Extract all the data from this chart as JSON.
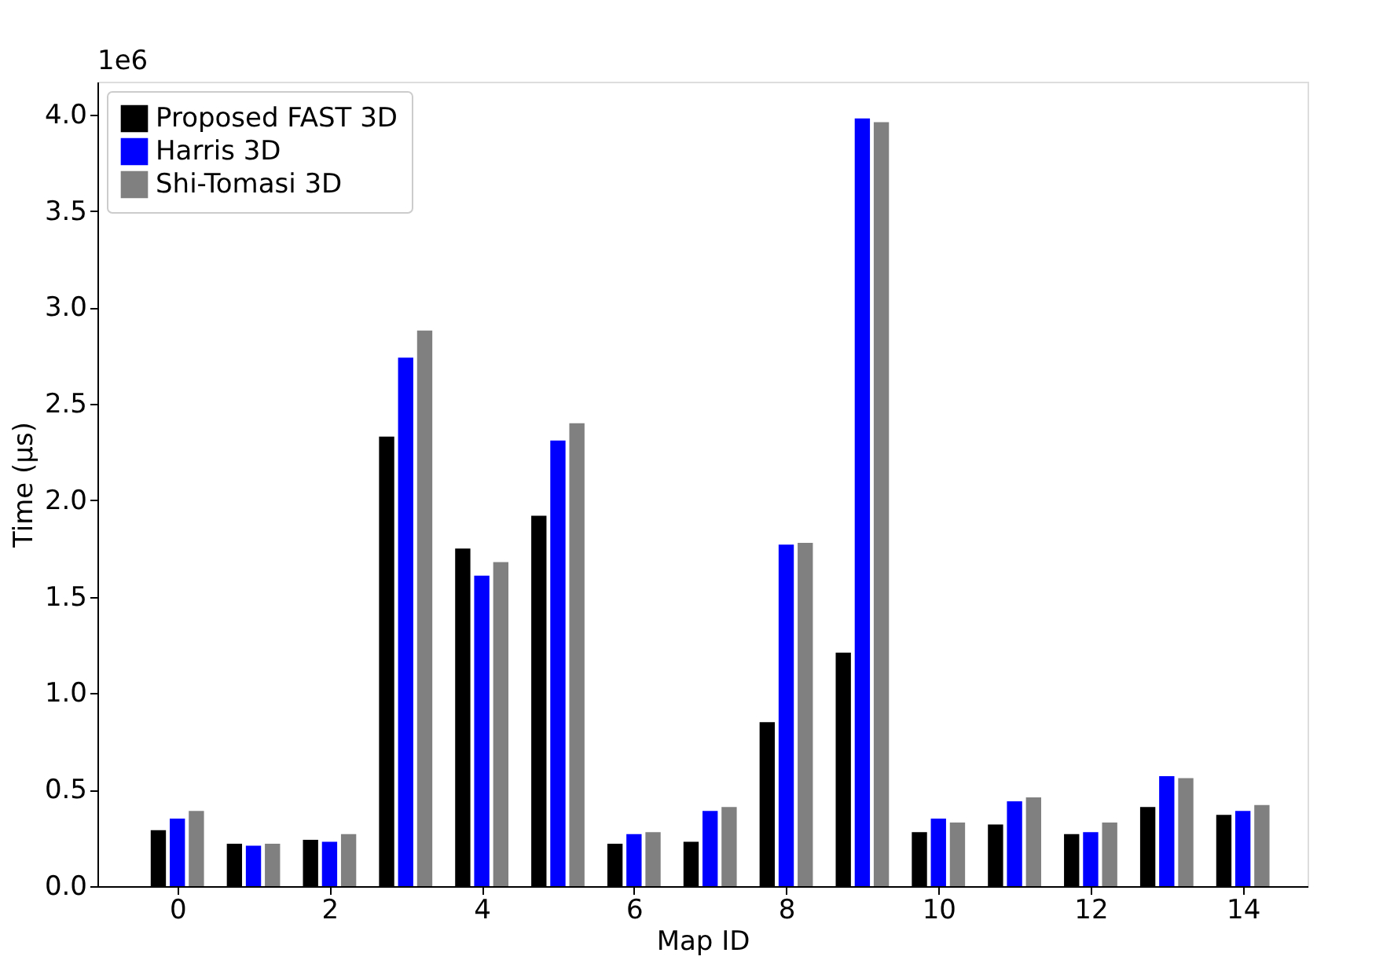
{
  "chart_data": {
    "type": "bar",
    "xlabel": "Map ID",
    "ylabel": "Time (µs)",
    "annotations": [
      "1e6"
    ],
    "x": [
      0,
      1,
      2,
      3,
      4,
      5,
      6,
      7,
      8,
      9,
      10,
      11,
      12,
      13,
      14
    ],
    "xlim": [
      -1.05,
      14.85
    ],
    "xticks": [
      0,
      2,
      4,
      6,
      8,
      10,
      12,
      14
    ],
    "ylim": [
      0,
      4.17
    ],
    "yticks": [
      {
        "value": 0,
        "label": "0.0"
      },
      {
        "value": 0.5,
        "label": "0.5"
      },
      {
        "value": 1,
        "label": "1.0"
      },
      {
        "value": 1.5,
        "label": "1.5"
      },
      {
        "value": 2,
        "label": "2.0"
      },
      {
        "value": 2.5,
        "label": "2.5"
      },
      {
        "value": 3,
        "label": "3.0"
      },
      {
        "value": 3.5,
        "label": "3.5"
      },
      {
        "value": 4,
        "label": "4.0"
      }
    ],
    "grid": false,
    "legend": "top left",
    "series": [
      {
        "name": "Proposed FAST 3D",
        "color": "#000000",
        "values": [
          0.29,
          0.22,
          0.24,
          2.33,
          1.75,
          1.92,
          0.22,
          0.23,
          0.85,
          1.21,
          0.28,
          0.32,
          0.27,
          0.41,
          0.37
        ]
      },
      {
        "name": "Harris 3D",
        "color": "#0000ff",
        "values": [
          0.35,
          0.21,
          0.23,
          2.74,
          1.61,
          2.31,
          0.27,
          0.39,
          1.77,
          3.98,
          0.35,
          0.44,
          0.28,
          0.57,
          0.39
        ]
      },
      {
        "name": "Shi-Tomasi 3D",
        "color": "#808080",
        "values": [
          0.39,
          0.22,
          0.27,
          2.88,
          1.68,
          2.4,
          0.28,
          0.41,
          1.78,
          3.96,
          0.33,
          0.46,
          0.33,
          0.56,
          0.42
        ]
      }
    ]
  }
}
